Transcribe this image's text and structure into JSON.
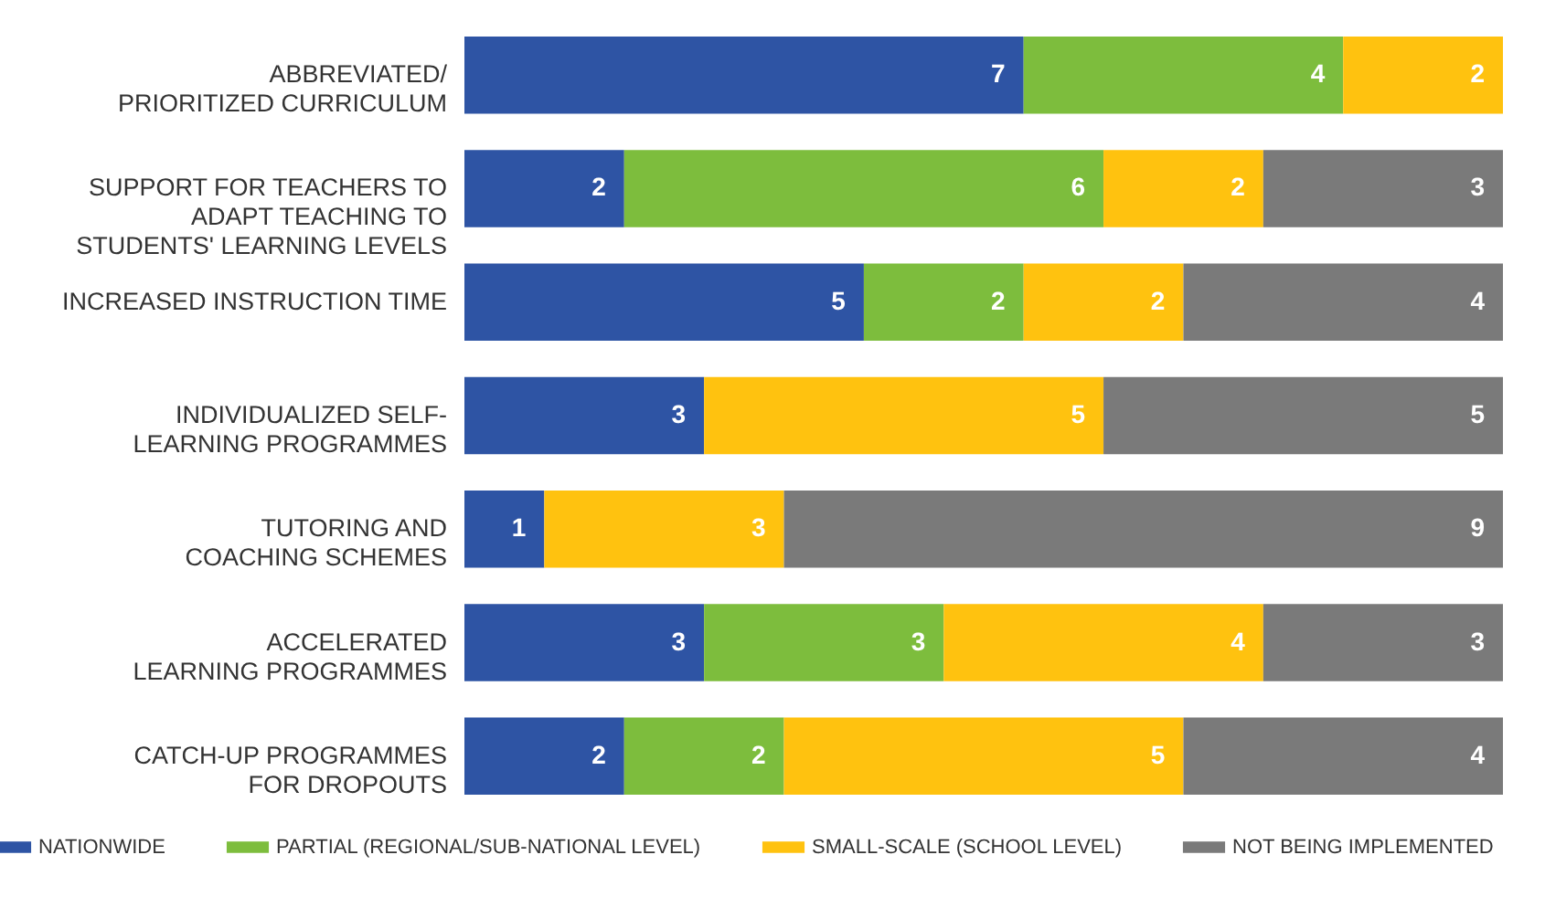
{
  "chart_data": {
    "type": "bar",
    "orientation": "horizontal",
    "stacked": true,
    "data_labels": true,
    "legend": "bottom",
    "tick_labels": "y",
    "xlim": [
      0,
      13
    ],
    "categories": [
      "ABBREVIATED/\nPRIORITIZED CURRICULUM",
      "SUPPORT FOR TEACHERS TO\nADAPT TEACHING TO\nSTUDENTS' LEARNING LEVELS",
      "INCREASED INSTRUCTION TIME",
      "INDIVIDUALIZED SELF-\nLEARNING PROGRAMMES",
      "TUTORING AND\nCOACHING SCHEMES",
      "ACCELERATED\nLEARNING PROGRAMMES",
      "CATCH-UP PROGRAMMES\nFOR DROPOUTS"
    ],
    "series": [
      {
        "name": "NATIONWIDE",
        "color": "#2e54a4",
        "values": [
          7,
          2,
          5,
          3,
          1,
          3,
          2
        ]
      },
      {
        "name": "PARTIAL (REGIONAL/SUB-NATIONAL LEVEL)",
        "color": "#7dbd3d",
        "values": [
          4,
          6,
          2,
          null,
          null,
          3,
          2
        ]
      },
      {
        "name": "SMALL-SCALE (SCHOOL LEVEL)",
        "color": "#ffc20f",
        "values": [
          2,
          2,
          2,
          5,
          3,
          4,
          5
        ]
      },
      {
        "name": "NOT BEING IMPLEMENTED",
        "color": "#7a7a7a",
        "values": [
          null,
          3,
          4,
          5,
          9,
          3,
          4
        ]
      }
    ]
  }
}
